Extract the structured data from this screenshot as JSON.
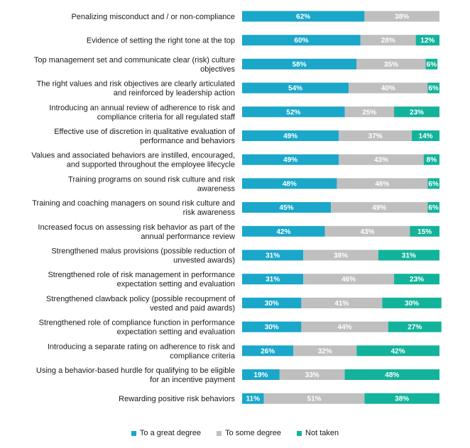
{
  "chart_data": {
    "type": "bar",
    "orientation": "horizontal",
    "stacked": true,
    "categories": [
      [
        "Penalizing misconduct and / or non-compliance"
      ],
      [
        "Evidence of setting the right tone at the top"
      ],
      [
        "Top management set and communicate clear (risk) culture",
        "objectives"
      ],
      [
        "The right values and risk objectives are clearly articulated",
        "and reinforced by leadership action"
      ],
      [
        "Introducing an annual review of adherence to risk and",
        "compliance criteria for all regulated staff"
      ],
      [
        "Effective use of discretion in qualitative evaluation of",
        "performance and behaviors"
      ],
      [
        "Values and associated behaviors are instilled, encouraged,",
        "and supported throughout the employee lifecycle"
      ],
      [
        "Training programs on sound risk culture and risk",
        "awareness"
      ],
      [
        "Training and coaching managers on sound risk culture and",
        "risk awareness"
      ],
      [
        "Increased focus on assessing risk behavior as part of the",
        "annual performance review"
      ],
      [
        "Strengthened malus provisions (possible reduction of",
        "unvested awards)"
      ],
      [
        "Strengthened role of risk management in performance",
        "expectation setting and evaluation"
      ],
      [
        "Strengthened clawback policy (possible recoupment of",
        "vested and paid awards)"
      ],
      [
        "Strengthened role of compliance function in performance",
        "expectation setting and evaluation"
      ],
      [
        "Introducing a separate rating on adherence to risk and",
        "compliance criteria"
      ],
      [
        "Using a behavior-based hurdle for qualifying to be eligible",
        "for an incentive payment"
      ],
      [
        "Rewarding positive risk behaviors"
      ]
    ],
    "series": [
      {
        "name": "To a great degree",
        "color": "#1aa7c9",
        "values": [
          62,
          60,
          58,
          54,
          52,
          49,
          49,
          48,
          45,
          42,
          31,
          31,
          30,
          30,
          26,
          19,
          11
        ]
      },
      {
        "name": "To some degree",
        "color": "#bfbfbf",
        "values": [
          38,
          28,
          35,
          40,
          25,
          37,
          43,
          46,
          49,
          43,
          38,
          46,
          41,
          44,
          32,
          33,
          51
        ]
      },
      {
        "name": "Not taken",
        "color": "#13b39b",
        "values": [
          0,
          12,
          6,
          6,
          23,
          14,
          8,
          6,
          6,
          15,
          31,
          23,
          30,
          27,
          42,
          48,
          38
        ]
      }
    ],
    "value_suffix": "%",
    "legend_position": "bottom",
    "grid": false
  }
}
